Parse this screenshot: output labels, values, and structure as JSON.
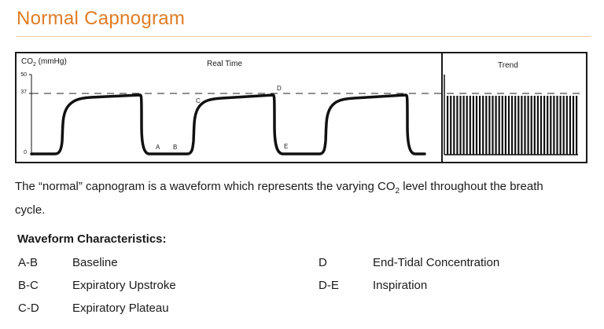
{
  "title": "Normal Capnogram",
  "chart": {
    "y_axis_label": "CO",
    "y_axis_sub": "2",
    "y_axis_unit": " (mmHg)",
    "section_realtime": "Real Time",
    "section_trend": "Trend",
    "y_ticks": [
      "50",
      "37",
      "0"
    ],
    "points": [
      "A",
      "B",
      "C",
      "D",
      "E"
    ],
    "colors": {
      "line": "#111111",
      "accent": "#e07c24"
    }
  },
  "description": {
    "part1": "The “normal” capnogram is a waveform which represents the varying CO",
    "sub": "2",
    "part2": " level throughout the breath cycle."
  },
  "characteristics": {
    "heading": "Waveform Characteristics:",
    "items": [
      {
        "code": "A-B",
        "label": "Baseline"
      },
      {
        "code": "B-C",
        "label": "Expiratory Upstroke"
      },
      {
        "code": "C-D",
        "label": "Expiratory Plateau"
      },
      {
        "code": "D",
        "label": "End-Tidal Concentration"
      },
      {
        "code": "D-E",
        "label": "Inspiration"
      }
    ]
  }
}
